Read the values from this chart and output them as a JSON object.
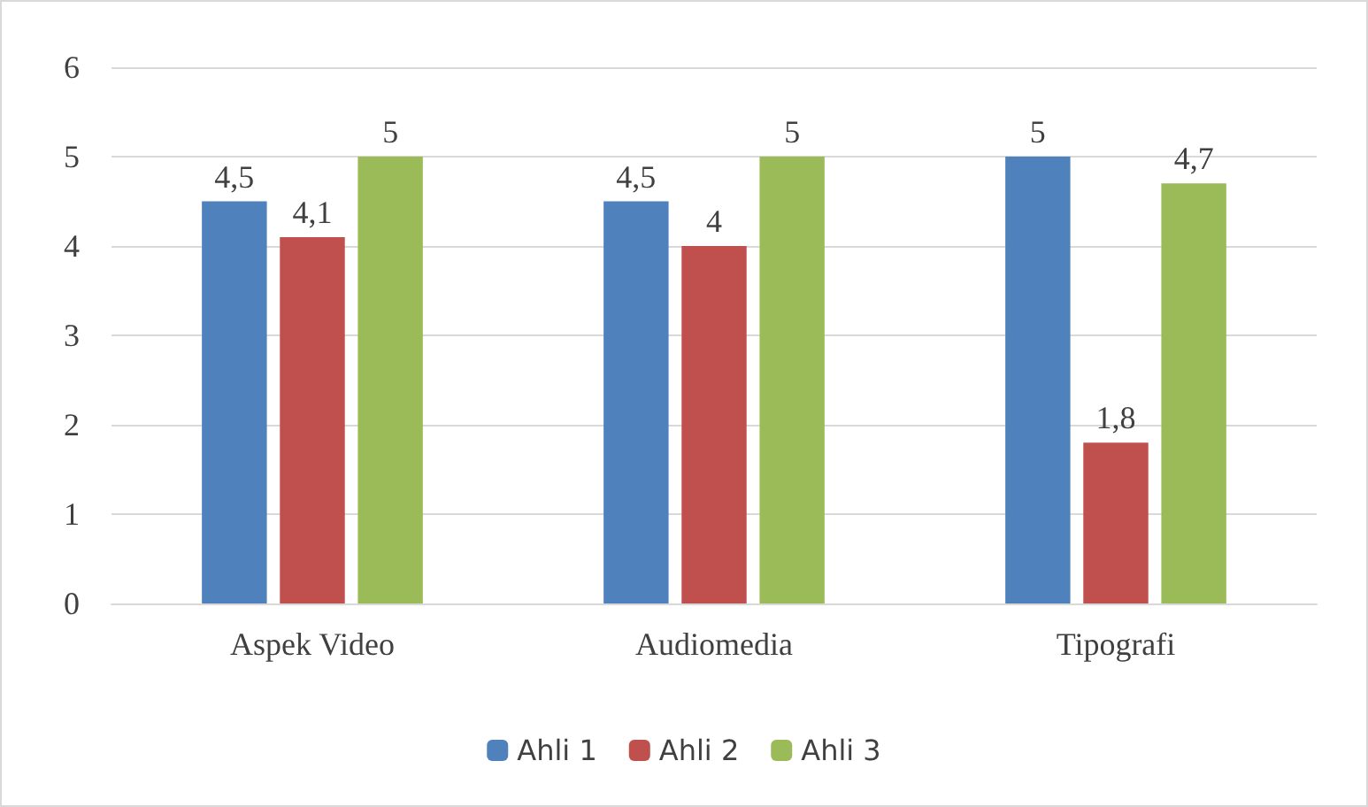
{
  "chart_data": {
    "type": "bar",
    "categories": [
      "Aspek Video",
      "Audiomedia",
      "Tipografi"
    ],
    "series": [
      {
        "name": "Ahli 1",
        "color": "#4f81bd",
        "values": [
          4.5,
          4.5,
          5
        ],
        "value_labels": [
          "4,5",
          "4,5",
          "5"
        ]
      },
      {
        "name": "Ahli 2",
        "color": "#c0504d",
        "values": [
          4.1,
          4,
          1.8
        ],
        "value_labels": [
          "4,1",
          "4",
          "1,8"
        ]
      },
      {
        "name": "Ahli 3",
        "color": "#9bbb59",
        "values": [
          5,
          5,
          4.7
        ],
        "value_labels": [
          "5",
          "5",
          "4,7"
        ]
      }
    ],
    "ylim": [
      0,
      6
    ],
    "yticks": [
      0,
      1,
      2,
      3,
      4,
      5,
      6
    ],
    "grid": "y",
    "legend": "bottom"
  }
}
